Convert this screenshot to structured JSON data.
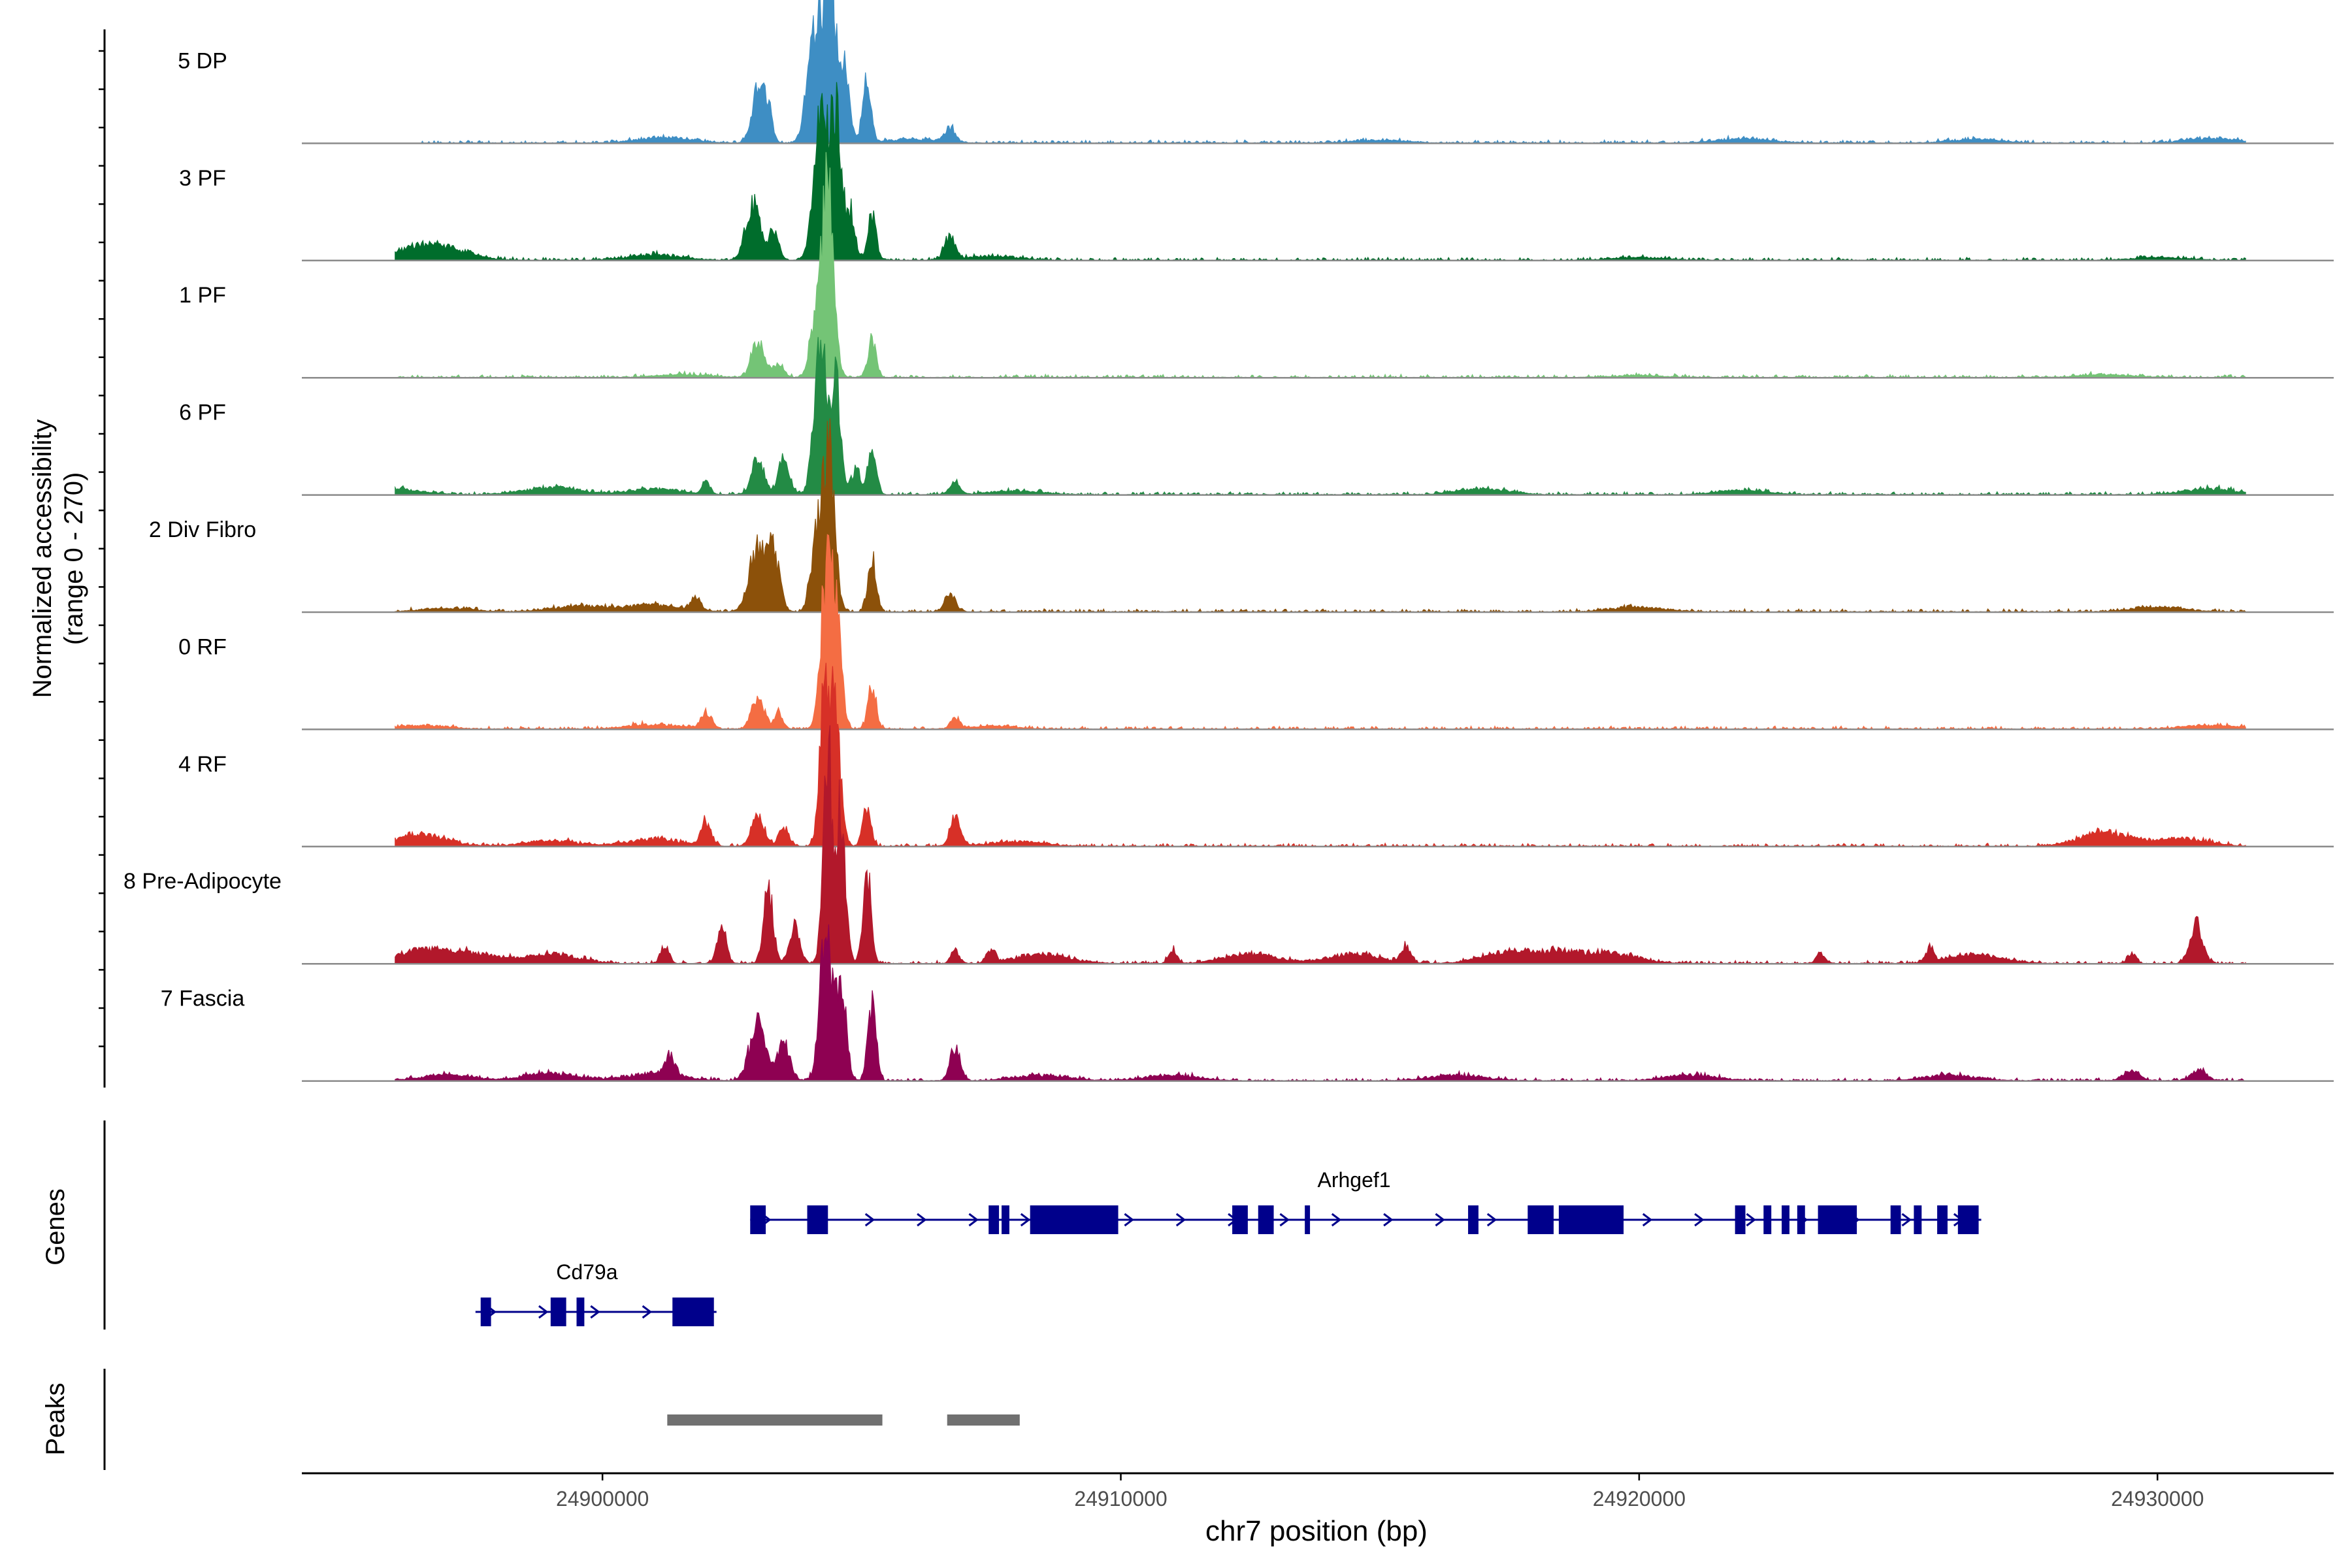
{
  "chart_data": {
    "type": "area",
    "title": "",
    "chromosome": "chr7",
    "xlabel": "chr7 position (bp)",
    "xlim": [
      24894200,
      24933400
    ],
    "x_ticks": [
      24900000,
      24910000,
      24920000,
      24930000
    ],
    "x_tick_labels": [
      "24900000",
      "24910000",
      "24920000",
      "24930000"
    ],
    "ylabel_line1": "Normalized accessibility",
    "ylabel_line2": "(range 0 - 270)",
    "ylim": [
      0,
      270
    ],
    "tracks": [
      {
        "name": "5 DP",
        "color": "#3E8EC4",
        "peaks": [
          [
            24903000,
            55,
            120
          ],
          [
            24903200,
            35,
            80
          ],
          [
            24904100,
            130,
            140
          ],
          [
            24904400,
            180,
            110
          ],
          [
            24904700,
            80,
            80
          ],
          [
            24905100,
            65,
            80
          ],
          [
            24906700,
            15,
            100
          ]
        ],
        "noise": [
          [
            24901200,
            6
          ],
          [
            24906000,
            4
          ],
          [
            24915000,
            3
          ],
          [
            24922000,
            5
          ],
          [
            24926500,
            4
          ],
          [
            24931000,
            5
          ]
        ]
      },
      {
        "name": "3 PF",
        "color": "#006D2C",
        "peaks": [
          [
            24902900,
            60,
            140
          ],
          [
            24903300,
            30,
            100
          ],
          [
            24904200,
            150,
            130
          ],
          [
            24904500,
            160,
            110
          ],
          [
            24904800,
            50,
            80
          ],
          [
            24905200,
            50,
            80
          ],
          [
            24906700,
            25,
            100
          ]
        ],
        "noise": [
          [
            24896500,
            12
          ],
          [
            24897000,
            8
          ],
          [
            24901000,
            6
          ],
          [
            24907500,
            4
          ],
          [
            24920000,
            3
          ],
          [
            24930000,
            3
          ]
        ]
      },
      {
        "name": "1 PF",
        "color": "#74C476",
        "peaks": [
          [
            24903000,
            40,
            120
          ],
          [
            24903400,
            15,
            100
          ],
          [
            24904350,
            220,
            110
          ],
          [
            24904100,
            60,
            100
          ],
          [
            24905200,
            40,
            80
          ]
        ],
        "noise": [
          [
            24901500,
            3
          ],
          [
            24920000,
            2
          ],
          [
            24929000,
            3
          ]
        ]
      },
      {
        "name": "6 PF",
        "color": "#238B45",
        "peaks": [
          [
            24902000,
            12,
            80
          ],
          [
            24903000,
            40,
            120
          ],
          [
            24903500,
            45,
            100
          ],
          [
            24904200,
            160,
            120
          ],
          [
            24904500,
            120,
            100
          ],
          [
            24904900,
            30,
            80
          ],
          [
            24905200,
            50,
            80
          ],
          [
            24906800,
            12,
            100
          ]
        ],
        "noise": [
          [
            24896000,
            6
          ],
          [
            24899000,
            8
          ],
          [
            24901000,
            6
          ],
          [
            24908000,
            4
          ],
          [
            24917000,
            6
          ],
          [
            24922000,
            5
          ],
          [
            24931000,
            6
          ]
        ]
      },
      {
        "name": "2 Div Fibro",
        "color": "#8C510A",
        "peaks": [
          [
            24903000,
            70,
            160
          ],
          [
            24903300,
            55,
            120
          ],
          [
            24904350,
            180,
            120
          ],
          [
            24904100,
            60,
            100
          ],
          [
            24905200,
            60,
            80
          ],
          [
            24906700,
            20,
            100
          ],
          [
            24901800,
            12,
            100
          ]
        ],
        "noise": [
          [
            24897000,
            4
          ],
          [
            24899500,
            6
          ],
          [
            24901000,
            8
          ],
          [
            24920000,
            5
          ],
          [
            24930000,
            5
          ]
        ]
      },
      {
        "name": "0 RF",
        "color": "#F46D43",
        "peaks": [
          [
            24902000,
            18,
            100
          ],
          [
            24903000,
            35,
            120
          ],
          [
            24903400,
            20,
            80
          ],
          [
            24904300,
            150,
            100
          ],
          [
            24904500,
            130,
            100
          ],
          [
            24905200,
            45,
            80
          ],
          [
            24906800,
            12,
            80
          ]
        ],
        "noise": [
          [
            24896500,
            4
          ],
          [
            24901000,
            5
          ],
          [
            24907500,
            3
          ],
          [
            24931000,
            4
          ]
        ]
      },
      {
        "name": "4 RF",
        "color": "#D73027",
        "peaks": [
          [
            24902000,
            25,
            100
          ],
          [
            24903000,
            35,
            120
          ],
          [
            24903500,
            20,
            100
          ],
          [
            24904300,
            170,
            100
          ],
          [
            24904500,
            120,
            100
          ],
          [
            24905100,
            40,
            80
          ],
          [
            24906800,
            30,
            100
          ]
        ],
        "noise": [
          [
            24896500,
            12
          ],
          [
            24899000,
            6
          ],
          [
            24901000,
            8
          ],
          [
            24908000,
            5
          ],
          [
            24929000,
            15
          ],
          [
            24930500,
            8
          ]
        ]
      },
      {
        "name": "8 Pre-Adipocyte",
        "color": "#B2182B",
        "peaks": [
          [
            24901200,
            20,
            80
          ],
          [
            24902300,
            40,
            90
          ],
          [
            24903200,
            80,
            90
          ],
          [
            24903700,
            40,
            100
          ],
          [
            24904350,
            220,
            90
          ],
          [
            24904600,
            160,
            90
          ],
          [
            24905100,
            100,
            80
          ],
          [
            24906800,
            15,
            80
          ],
          [
            24907500,
            15,
            80
          ],
          [
            24911000,
            15,
            80
          ],
          [
            24915500,
            18,
            90
          ],
          [
            24923500,
            12,
            80
          ],
          [
            24925600,
            14,
            80
          ],
          [
            24929500,
            12,
            80
          ],
          [
            24930750,
            42,
            120
          ]
        ],
        "noise": [
          [
            24896500,
            14
          ],
          [
            24897500,
            10
          ],
          [
            24899000,
            10
          ],
          [
            24908500,
            10
          ],
          [
            24912500,
            10
          ],
          [
            24914500,
            10
          ],
          [
            24917500,
            12
          ],
          [
            24918500,
            10
          ],
          [
            24919500,
            10
          ],
          [
            24926500,
            10
          ]
        ]
      },
      {
        "name": "7 Fascia",
        "color": "#8E0152",
        "peaks": [
          [
            24901300,
            20,
            100
          ],
          [
            24903000,
            60,
            160
          ],
          [
            24903500,
            40,
            120
          ],
          [
            24904300,
            170,
            110
          ],
          [
            24904600,
            110,
            100
          ],
          [
            24905200,
            80,
            80
          ],
          [
            24906800,
            35,
            100
          ],
          [
            24929500,
            10,
            160
          ],
          [
            24930800,
            12,
            140
          ]
        ],
        "noise": [
          [
            24897000,
            6
          ],
          [
            24899000,
            8
          ],
          [
            24901000,
            8
          ],
          [
            24908500,
            6
          ],
          [
            24911000,
            6
          ],
          [
            24916500,
            6
          ],
          [
            24921000,
            6
          ],
          [
            24926000,
            6
          ]
        ]
      }
    ],
    "genes_label": "Genes",
    "genes": [
      {
        "name": "Arhgef1",
        "strand": "+",
        "start": 24902850,
        "end": 24926600,
        "row": 1,
        "exons": [
          [
            24902850,
            24903150
          ],
          [
            24903950,
            24904350
          ],
          [
            24907450,
            24907650
          ],
          [
            24907700,
            24907850
          ],
          [
            24908250,
            24909950
          ],
          [
            24912150,
            24912450
          ],
          [
            24912650,
            24912950
          ],
          [
            24913550,
            24913650
          ],
          [
            24916700,
            24916900
          ],
          [
            24917850,
            24918350
          ],
          [
            24918450,
            24919700
          ],
          [
            24921850,
            24922050
          ],
          [
            24922400,
            24922550
          ],
          [
            24922750,
            24922900
          ],
          [
            24923050,
            24923200
          ],
          [
            24923450,
            24924200
          ],
          [
            24924850,
            24925050
          ],
          [
            24925300,
            24925450
          ],
          [
            24925750,
            24925950
          ],
          [
            24926150,
            24926550
          ]
        ]
      },
      {
        "name": "Cd79a",
        "strand": "+",
        "start": 24897550,
        "end": 24902200,
        "row": 2,
        "exons": [
          [
            24897650,
            24897850
          ],
          [
            24899000,
            24899300
          ],
          [
            24899500,
            24899650
          ],
          [
            24901350,
            24902150
          ]
        ]
      }
    ],
    "peaks_label": "Peaks",
    "peak_regions": [
      [
        24901250,
        24905400
      ],
      [
        24906650,
        24908050
      ]
    ]
  }
}
